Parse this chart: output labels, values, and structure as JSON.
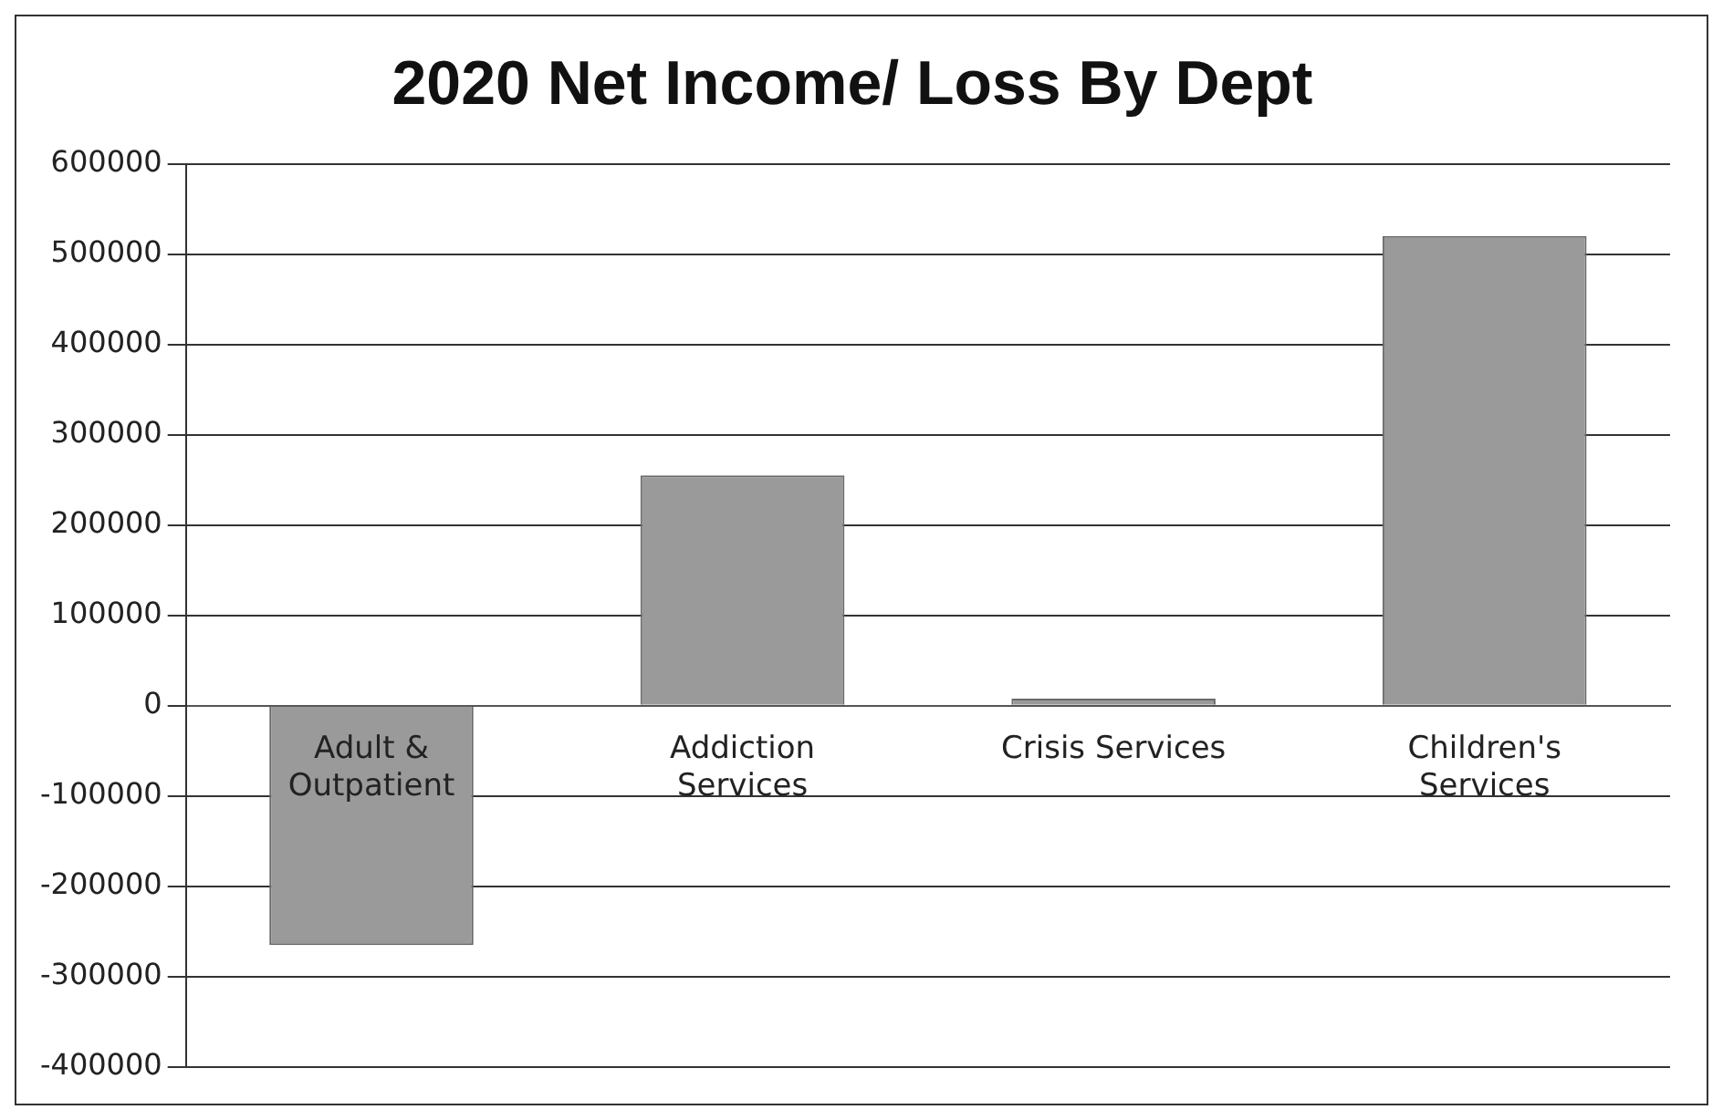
{
  "chart_data": {
    "type": "bar",
    "title": "2020 Net Income/ Loss By Dept",
    "categories": [
      "Adult & Outpatient",
      "Addiction Services",
      "Crisis Services",
      "Children's Services"
    ],
    "values": [
      -265000,
      255000,
      8000,
      520000
    ],
    "color": "#9a9a9a",
    "ylim": [
      -400000,
      600000
    ],
    "yticks": [
      -400000,
      -300000,
      -200000,
      -100000,
      0,
      100000,
      200000,
      300000,
      400000,
      500000,
      600000
    ],
    "grid": "y",
    "legend": false
  }
}
